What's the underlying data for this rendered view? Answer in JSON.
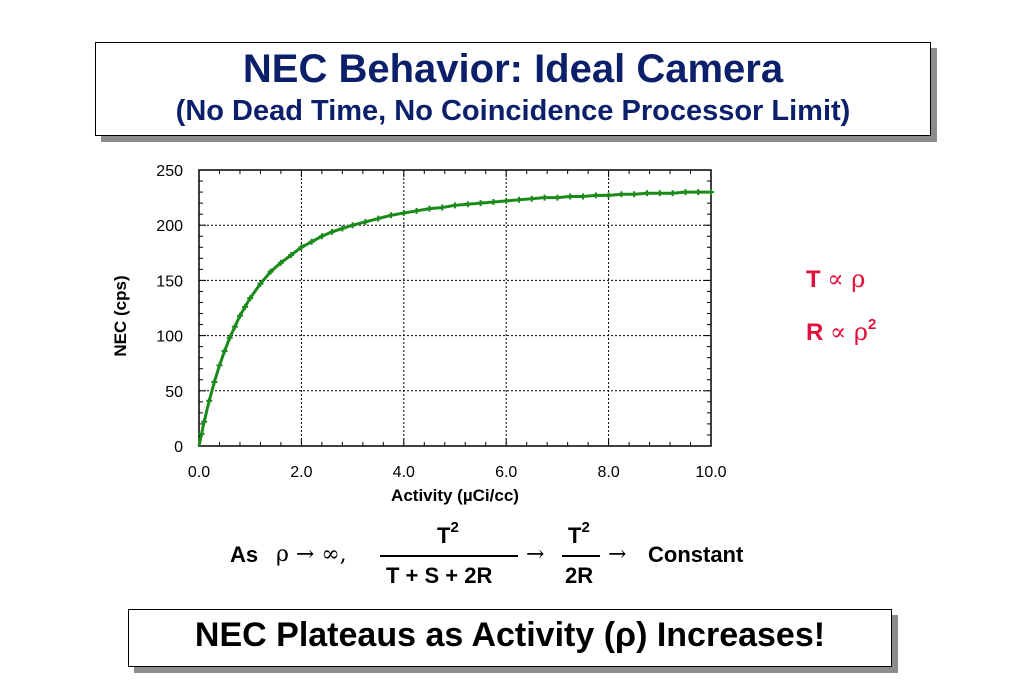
{
  "slide": {
    "title_line1": "NEC Behavior: Ideal Camera",
    "title_line2": "(No Dead Time, No Coincidence Processor Limit)",
    "relations": {
      "t_letter": "T",
      "t_symbol": "∝ ρ",
      "r_letter": "R",
      "r_symbol": "∝ ρ",
      "r_exponent": "2"
    },
    "formula": {
      "prefix": "As",
      "limit": "ρ → ∞,",
      "num1": "T",
      "num1_exp": "2",
      "den1": "T + S + 2R",
      "arrow1": "→",
      "num2": "T",
      "num2_exp": "2",
      "den2": "2R",
      "arrow2": "→",
      "result": "Constant"
    },
    "conclusion": "NEC Plateaus as Activity (ρ) Increases!"
  },
  "colors": {
    "title": "#0b1f6b",
    "relations": "#e0103a",
    "curve": "#1a8a1a"
  },
  "chart_data": {
    "type": "scatter",
    "xlabel": "Activity (µCi/cc)",
    "ylabel": "NEC (cps)",
    "xlim": [
      0,
      10
    ],
    "ylim": [
      0,
      250
    ],
    "xticks": [
      "0.0",
      "2.0",
      "4.0",
      "6.0",
      "8.0",
      "10.0"
    ],
    "yticks": [
      "0",
      "50",
      "100",
      "150",
      "200",
      "250"
    ],
    "grid": true,
    "series": [
      {
        "marker": "+",
        "x": [
          0.05,
          0.1,
          0.2,
          0.3,
          0.4,
          0.5,
          0.6,
          0.7,
          0.8,
          0.9,
          1.0,
          1.2,
          1.4,
          1.6,
          1.8,
          2.0,
          2.2,
          2.4,
          2.6,
          2.8,
          3.0,
          3.25,
          3.5,
          3.75,
          4.0,
          4.25,
          4.5,
          4.75,
          5.0,
          5.25,
          5.5,
          5.75,
          6.0,
          6.25,
          6.5,
          6.75,
          7.0,
          7.25,
          7.5,
          7.75,
          8.0,
          8.25,
          8.5,
          8.75,
          9.0,
          9.25,
          9.5,
          9.75,
          10.0
        ],
        "y": [
          11,
          22,
          41,
          58,
          73,
          86,
          98,
          108,
          118,
          126,
          134,
          147,
          158,
          166,
          173,
          180,
          185,
          190,
          194,
          197,
          200,
          203,
          206,
          209,
          211,
          213,
          215,
          216,
          218,
          219,
          220,
          221,
          222,
          223,
          224,
          225,
          225,
          226,
          226,
          227,
          227,
          228,
          228,
          229,
          229,
          229,
          230,
          230,
          230
        ]
      }
    ]
  }
}
